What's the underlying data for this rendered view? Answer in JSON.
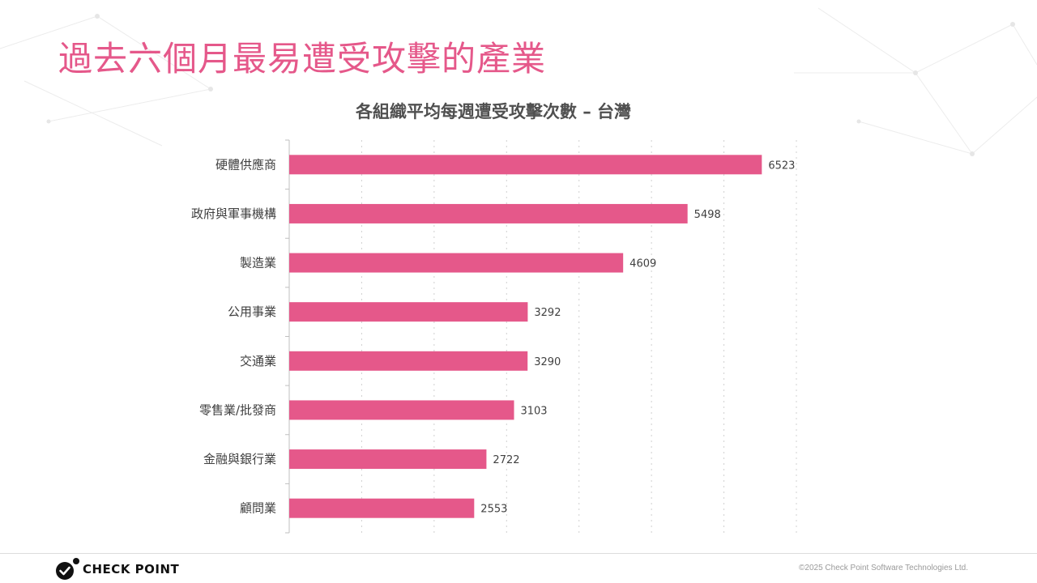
{
  "slide": {
    "title": "過去六個月最易遭受攻擊的產業",
    "title_color": "#E5588A",
    "copyright": "©2025 Check Point Software Technologies Ltd."
  },
  "logo": {
    "text": "CHECK POINT",
    "icon": "check-point-logo-icon"
  },
  "colors": {
    "bar": "#E5588A",
    "label": "#404040",
    "axis": "#BFBFBF",
    "grid": "#D0D0D0"
  },
  "chart_data": {
    "type": "bar",
    "orientation": "horizontal",
    "title": "各組織平均每週遭受攻擊次數 – 台灣",
    "categories": [
      "硬體供應商",
      "政府與軍事機構",
      "製造業",
      "公用事業",
      "交通業",
      "零售業/批發商",
      "金融與銀行業",
      "顧問業"
    ],
    "values": [
      6523,
      5498,
      4609,
      3292,
      3290,
      3103,
      2722,
      2553
    ],
    "xlim": [
      0,
      7000
    ],
    "grid": "vertical-dotted",
    "data_labels": true,
    "legend": "none"
  }
}
